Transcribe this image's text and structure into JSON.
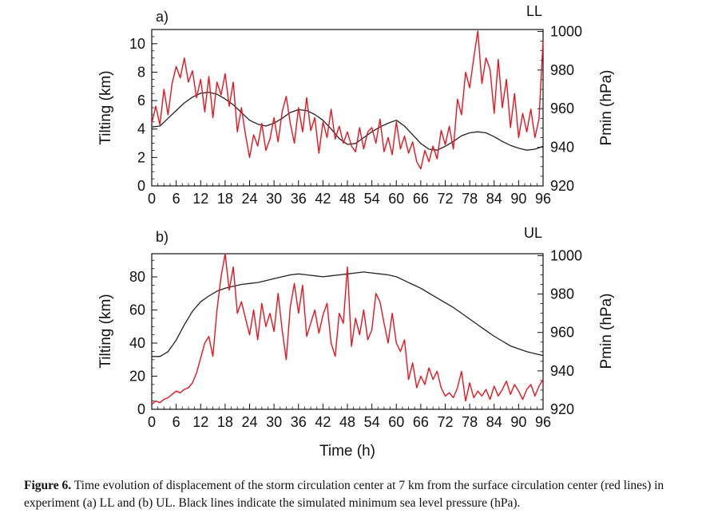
{
  "caption": {
    "label": "Figure 6.",
    "text": "Time evolution of displacement of the storm circulation center at 7 km from the surface circulation center (red lines) in experiment (a) LL and (b) UL. Black lines indicate the simulated minimum sea level pressure (hPa)."
  },
  "colors": {
    "tilt": "#e8141e",
    "pmin": "#222222"
  },
  "chart_data": [
    {
      "type": "line",
      "panel_label": "a)",
      "experiment": "LL",
      "xlabel": "",
      "ylabel": "Tilting (km)",
      "y2label": "Pmin (hPa)",
      "xlim": [
        0,
        96
      ],
      "ylim": [
        0,
        11
      ],
      "y2lim": [
        920,
        1001
      ],
      "xticks": [
        0,
        6,
        12,
        18,
        24,
        30,
        36,
        42,
        48,
        54,
        60,
        66,
        72,
        78,
        84,
        90,
        96
      ],
      "yticks": [
        0,
        2,
        4,
        6,
        8,
        10
      ],
      "y2ticks": [
        920,
        940,
        960,
        980,
        1000
      ],
      "series": [
        {
          "name": "Tilting",
          "axis": "left",
          "color": "#e8141e",
          "x": [
            0,
            1,
            2,
            3,
            4,
            5,
            6,
            7,
            8,
            9,
            10,
            11,
            12,
            13,
            14,
            15,
            16,
            17,
            18,
            19,
            20,
            21,
            22,
            23,
            24,
            25,
            26,
            27,
            28,
            29,
            30,
            31,
            32,
            33,
            34,
            35,
            36,
            37,
            38,
            39,
            40,
            41,
            42,
            43,
            44,
            45,
            46,
            47,
            48,
            49,
            50,
            51,
            52,
            53,
            54,
            55,
            56,
            57,
            58,
            59,
            60,
            61,
            62,
            63,
            64,
            65,
            66,
            67,
            68,
            69,
            70,
            71,
            72,
            73,
            74,
            75,
            76,
            77,
            78,
            79,
            80,
            81,
            82,
            83,
            84,
            85,
            86,
            87,
            88,
            89,
            90,
            91,
            92,
            93,
            94,
            95,
            96
          ],
          "values": [
            4.4,
            5.6,
            4.3,
            6.8,
            5.0,
            7.2,
            8.4,
            7.6,
            9.0,
            7.3,
            8.1,
            6.2,
            7.5,
            5.2,
            7.7,
            4.8,
            7.3,
            6.4,
            7.9,
            5.6,
            7.3,
            3.8,
            5.5,
            3.6,
            2.0,
            3.6,
            2.8,
            4.4,
            2.5,
            3.3,
            4.8,
            3.1,
            5.2,
            6.3,
            4.4,
            3.0,
            5.5,
            3.8,
            6.2,
            3.9,
            4.8,
            2.3,
            4.5,
            3.4,
            5.4,
            3.3,
            4.2,
            3.0,
            3.8,
            2.8,
            2.4,
            4.1,
            2.6,
            3.8,
            4.1,
            3.0,
            4.7,
            2.4,
            3.4,
            2.2,
            4.5,
            2.6,
            3.5,
            2.3,
            3.1,
            1.7,
            1.2,
            2.5,
            1.7,
            2.8,
            1.9,
            3.9,
            2.9,
            4.2,
            2.6,
            6.1,
            5.0,
            8.0,
            6.9,
            9.0,
            10.9,
            7.2,
            9.0,
            8.2,
            5.1,
            8.9,
            5.5,
            7.5,
            4.1,
            6.5,
            3.4,
            5.1,
            3.8,
            5.4,
            3.4,
            4.7,
            10.2
          ]
        },
        {
          "name": "Pmin",
          "axis": "right",
          "color": "#222222",
          "x": [
            0,
            2,
            4,
            6,
            8,
            10,
            12,
            14,
            16,
            18,
            20,
            22,
            24,
            26,
            28,
            30,
            32,
            34,
            36,
            38,
            40,
            42,
            44,
            46,
            48,
            50,
            52,
            54,
            56,
            58,
            60,
            62,
            64,
            66,
            68,
            70,
            72,
            74,
            76,
            78,
            80,
            82,
            84,
            86,
            88,
            90,
            92,
            94,
            96
          ],
          "values": [
            950.5,
            951.0,
            955.0,
            959.0,
            963.0,
            966.0,
            968.0,
            968.5,
            967.5,
            965.0,
            962.0,
            958.0,
            954.0,
            952.0,
            951.0,
            952.5,
            955.0,
            958.0,
            959.5,
            959.0,
            957.0,
            954.0,
            949.5,
            944.5,
            941.5,
            942.0,
            945.0,
            948.0,
            950.5,
            952.5,
            954.0,
            951.0,
            946.5,
            942.0,
            939.0,
            938.5,
            940.5,
            943.0,
            946.0,
            947.5,
            948.0,
            947.5,
            945.5,
            943.0,
            941.0,
            939.5,
            938.5,
            939.0,
            940.5
          ]
        }
      ]
    },
    {
      "type": "line",
      "panel_label": "b)",
      "experiment": "UL",
      "xlabel": "Time (h)",
      "ylabel": "Tilting (km)",
      "y2label": "Pmin (hPa)",
      "xlim": [
        0,
        96
      ],
      "ylim": [
        0,
        94
      ],
      "y2lim": [
        920,
        1001
      ],
      "xticks": [
        0,
        6,
        12,
        18,
        24,
        30,
        36,
        42,
        48,
        54,
        60,
        66,
        72,
        78,
        84,
        90,
        96
      ],
      "yticks": [
        0,
        20,
        40,
        60,
        80
      ],
      "y2ticks": [
        920,
        940,
        960,
        980,
        1000
      ],
      "series": [
        {
          "name": "Tilting",
          "axis": "left",
          "color": "#e8141e",
          "x": [
            0,
            1,
            2,
            3,
            4,
            5,
            6,
            7,
            8,
            9,
            10,
            11,
            12,
            13,
            14,
            15,
            16,
            17,
            18,
            19,
            20,
            21,
            22,
            23,
            24,
            25,
            26,
            27,
            28,
            29,
            30,
            31,
            32,
            33,
            34,
            35,
            36,
            37,
            38,
            39,
            40,
            41,
            42,
            43,
            44,
            45,
            46,
            47,
            48,
            49,
            50,
            51,
            52,
            53,
            54,
            55,
            56,
            57,
            58,
            59,
            60,
            61,
            62,
            63,
            64,
            65,
            66,
            67,
            68,
            69,
            70,
            71,
            72,
            73,
            74,
            75,
            76,
            77,
            78,
            79,
            80,
            81,
            82,
            83,
            84,
            85,
            86,
            87,
            88,
            89,
            90,
            91,
            92,
            93,
            94,
            95,
            96
          ],
          "values": [
            3,
            5,
            4,
            6,
            7,
            9,
            11,
            10,
            12,
            13,
            16,
            22,
            31,
            40,
            44,
            32,
            60,
            80,
            94,
            72,
            86,
            58,
            65,
            55,
            45,
            60,
            42,
            64,
            50,
            58,
            47,
            70,
            48,
            30,
            62,
            76,
            58,
            75,
            44,
            52,
            60,
            46,
            57,
            64,
            40,
            32,
            58,
            52,
            86,
            38,
            55,
            45,
            60,
            42,
            48,
            70,
            65,
            52,
            40,
            58,
            40,
            35,
            42,
            18,
            28,
            13,
            20,
            15,
            25,
            18,
            23,
            13,
            8,
            10,
            7,
            13,
            23,
            5,
            16,
            7,
            11,
            8,
            12,
            6,
            14,
            8,
            12,
            17,
            9,
            15,
            11,
            6,
            12,
            15,
            8,
            14,
            18
          ]
        },
        {
          "name": "Pmin",
          "axis": "right",
          "color": "#222222",
          "x": [
            0,
            2,
            4,
            6,
            8,
            10,
            12,
            14,
            16,
            18,
            20,
            22,
            24,
            26,
            28,
            30,
            32,
            34,
            36,
            38,
            40,
            42,
            44,
            46,
            48,
            50,
            52,
            54,
            56,
            58,
            60,
            62,
            64,
            66,
            68,
            70,
            72,
            74,
            76,
            78,
            80,
            82,
            84,
            86,
            88,
            90,
            92,
            94,
            96
          ],
          "values": [
            947.5,
            947.5,
            950.0,
            956.0,
            964.0,
            971.0,
            976.0,
            979.0,
            981.5,
            983.0,
            984.0,
            985.0,
            985.5,
            986.0,
            987.0,
            988.0,
            989.0,
            990.0,
            990.5,
            990.0,
            989.5,
            989.0,
            989.5,
            990.0,
            990.5,
            991.0,
            991.5,
            991.0,
            990.5,
            990.0,
            989.0,
            987.0,
            985.0,
            983.0,
            980.5,
            978.0,
            975.5,
            973.0,
            970.0,
            967.0,
            964.0,
            961.0,
            958.0,
            955.5,
            953.0,
            951.5,
            950.0,
            949.0,
            948.0
          ]
        }
      ]
    }
  ]
}
